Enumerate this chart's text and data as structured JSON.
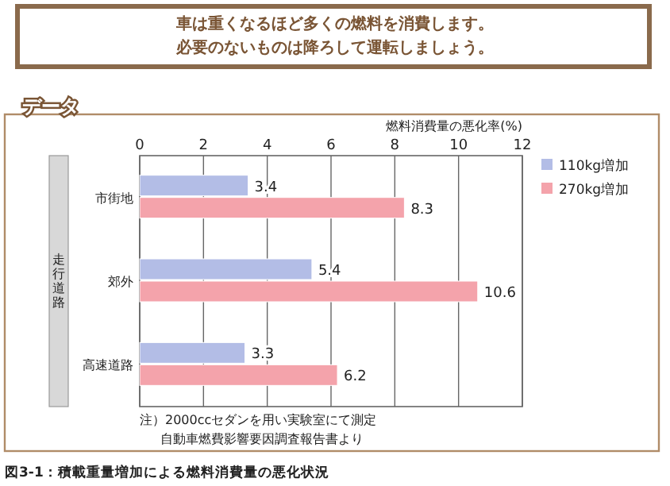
{
  "chart_data": {
    "type": "bar",
    "orientation": "horizontal",
    "title": [
      "車は重くなるほど多くの燃料を消費します。",
      "必要のないものは降ろして運転しましょう。"
    ],
    "subtitle": "データ",
    "xlabel": "燃料消費量の悪化率(%)",
    "ylabel": "走行道路",
    "categories": [
      "市街地",
      "郊外",
      "高速道路"
    ],
    "series": [
      {
        "name": "110kg増加",
        "color": "#b3bde6",
        "values": [
          3.4,
          5.4,
          3.3
        ]
      },
      {
        "name": "270kg増加",
        "color": "#f4a3ab",
        "values": [
          8.3,
          10.6,
          6.2
        ]
      }
    ],
    "xlim": [
      0,
      12
    ],
    "xticks": [
      0,
      2,
      4,
      6,
      8,
      10,
      12
    ],
    "grid": "x",
    "legend": "right",
    "data_labels": true,
    "annotations": [
      "注）2000ccセダンを用い実験室にて測定",
      "自動車燃費影響要因調査報告書より",
      "図3-1：積載重量増加による燃料消費量の悪化状況"
    ]
  }
}
